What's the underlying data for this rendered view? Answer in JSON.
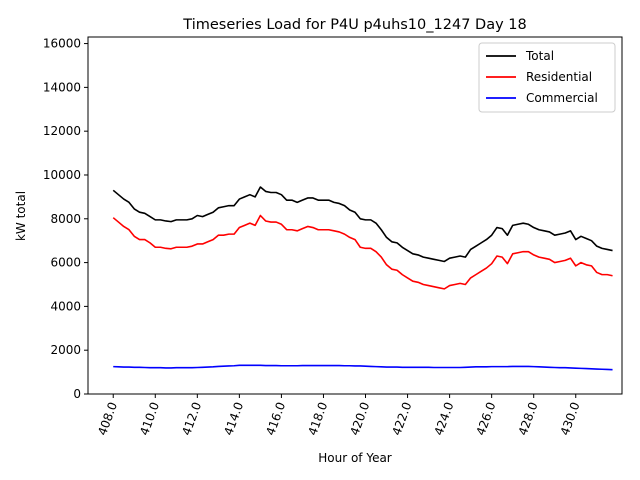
{
  "chart_data": {
    "type": "line",
    "title": "Timeseries Load for P4U p4uhs10_1247  Day 18",
    "xlabel": "Hour of Year",
    "ylabel": "kW total",
    "xlim": [
      406.8,
      432.2
    ],
    "ylim": [
      0,
      16300
    ],
    "xticks": [
      408,
      410,
      412,
      414,
      416,
      418,
      420,
      422,
      424,
      426,
      428,
      430
    ],
    "xtick_labels": [
      "408.0",
      "410.0",
      "412.0",
      "414.0",
      "416.0",
      "418.0",
      "420.0",
      "422.0",
      "424.0",
      "426.0",
      "428.0",
      "430.0"
    ],
    "yticks": [
      0,
      2000,
      4000,
      6000,
      8000,
      10000,
      12000,
      14000,
      16000
    ],
    "ytick_labels": [
      "0",
      "2000",
      "4000",
      "6000",
      "8000",
      "10000",
      "12000",
      "14000",
      "16000"
    ],
    "legend_position": "top-right",
    "grid": false,
    "x": [
      408.0,
      408.25,
      408.5,
      408.75,
      409.0,
      409.25,
      409.5,
      409.75,
      410.0,
      410.25,
      410.5,
      410.75,
      411.0,
      411.25,
      411.5,
      411.75,
      412.0,
      412.25,
      412.5,
      412.75,
      413.0,
      413.25,
      413.5,
      413.75,
      414.0,
      414.25,
      414.5,
      414.75,
      415.0,
      415.25,
      415.5,
      415.75,
      416.0,
      416.25,
      416.5,
      416.75,
      417.0,
      417.25,
      417.5,
      417.75,
      418.0,
      418.25,
      418.5,
      418.75,
      419.0,
      419.25,
      419.5,
      419.75,
      420.0,
      420.25,
      420.5,
      420.75,
      421.0,
      421.25,
      421.5,
      421.75,
      422.0,
      422.25,
      422.5,
      422.75,
      423.0,
      423.25,
      423.5,
      423.75,
      424.0,
      424.25,
      424.5,
      424.75,
      425.0,
      425.25,
      425.5,
      425.75,
      426.0,
      426.25,
      426.5,
      426.75,
      427.0,
      427.25,
      427.5,
      427.75,
      428.0,
      428.25,
      428.5,
      428.75,
      429.0,
      429.25,
      429.5,
      429.75,
      430.0,
      430.25,
      430.5,
      430.75,
      431.0,
      431.25,
      431.5,
      431.75
    ],
    "series": [
      {
        "name": "Total",
        "color": "#000000",
        "values": [
          9300,
          9100,
          8900,
          8750,
          8450,
          8300,
          8250,
          8100,
          7950,
          7950,
          7900,
          7870,
          7950,
          7950,
          7950,
          8000,
          8150,
          8100,
          8200,
          8300,
          8500,
          8550,
          8600,
          8600,
          8900,
          9000,
          9100,
          9000,
          9450,
          9250,
          9200,
          9200,
          9100,
          8850,
          8850,
          8750,
          8850,
          8950,
          8950,
          8850,
          8850,
          8850,
          8750,
          8700,
          8600,
          8400,
          8300,
          8000,
          7950,
          7950,
          7800,
          7500,
          7150,
          6950,
          6900,
          6700,
          6550,
          6400,
          6350,
          6250,
          6200,
          6150,
          6100,
          6050,
          6200,
          6250,
          6300,
          6250,
          6600,
          6750,
          6900,
          7050,
          7250,
          7600,
          7550,
          7250,
          7700,
          7750,
          7800,
          7750,
          7600,
          7500,
          7450,
          7400,
          7250,
          7300,
          7350,
          7450,
          7050,
          7200,
          7100,
          7000,
          6750,
          6650,
          6600,
          6550
        ]
      },
      {
        "name": "Residential",
        "color": "#ff0000",
        "values": [
          8050,
          7850,
          7650,
          7500,
          7200,
          7050,
          7050,
          6900,
          6700,
          6700,
          6650,
          6630,
          6700,
          6700,
          6700,
          6750,
          6850,
          6850,
          6950,
          7050,
          7250,
          7250,
          7300,
          7300,
          7600,
          7700,
          7800,
          7700,
          8150,
          7900,
          7850,
          7850,
          7750,
          7500,
          7500,
          7450,
          7550,
          7650,
          7600,
          7500,
          7500,
          7500,
          7450,
          7400,
          7300,
          7150,
          7050,
          6700,
          6650,
          6650,
          6500,
          6250,
          5900,
          5700,
          5650,
          5450,
          5300,
          5150,
          5100,
          5000,
          4950,
          4900,
          4850,
          4800,
          4950,
          5000,
          5050,
          5000,
          5300,
          5450,
          5600,
          5750,
          5950,
          6300,
          6250,
          5950,
          6400,
          6450,
          6500,
          6500,
          6350,
          6250,
          6200,
          6150,
          6000,
          6050,
          6100,
          6200,
          5850,
          6000,
          5900,
          5850,
          5550,
          5450,
          5450,
          5400
        ]
      },
      {
        "name": "Commercial",
        "color": "#0000ff",
        "values": [
          1250,
          1240,
          1230,
          1230,
          1220,
          1220,
          1210,
          1200,
          1200,
          1200,
          1190,
          1190,
          1200,
          1200,
          1200,
          1200,
          1210,
          1220,
          1230,
          1240,
          1260,
          1270,
          1280,
          1290,
          1310,
          1310,
          1310,
          1310,
          1310,
          1300,
          1300,
          1300,
          1290,
          1290,
          1290,
          1290,
          1300,
          1300,
          1300,
          1300,
          1300,
          1300,
          1300,
          1300,
          1290,
          1290,
          1280,
          1280,
          1270,
          1260,
          1250,
          1240,
          1230,
          1230,
          1230,
          1220,
          1220,
          1220,
          1220,
          1220,
          1220,
          1210,
          1210,
          1210,
          1210,
          1210,
          1210,
          1220,
          1230,
          1240,
          1240,
          1240,
          1250,
          1250,
          1250,
          1250,
          1260,
          1260,
          1260,
          1260,
          1250,
          1240,
          1230,
          1220,
          1210,
          1200,
          1200,
          1190,
          1180,
          1170,
          1160,
          1150,
          1140,
          1130,
          1120,
          1110
        ]
      }
    ]
  }
}
